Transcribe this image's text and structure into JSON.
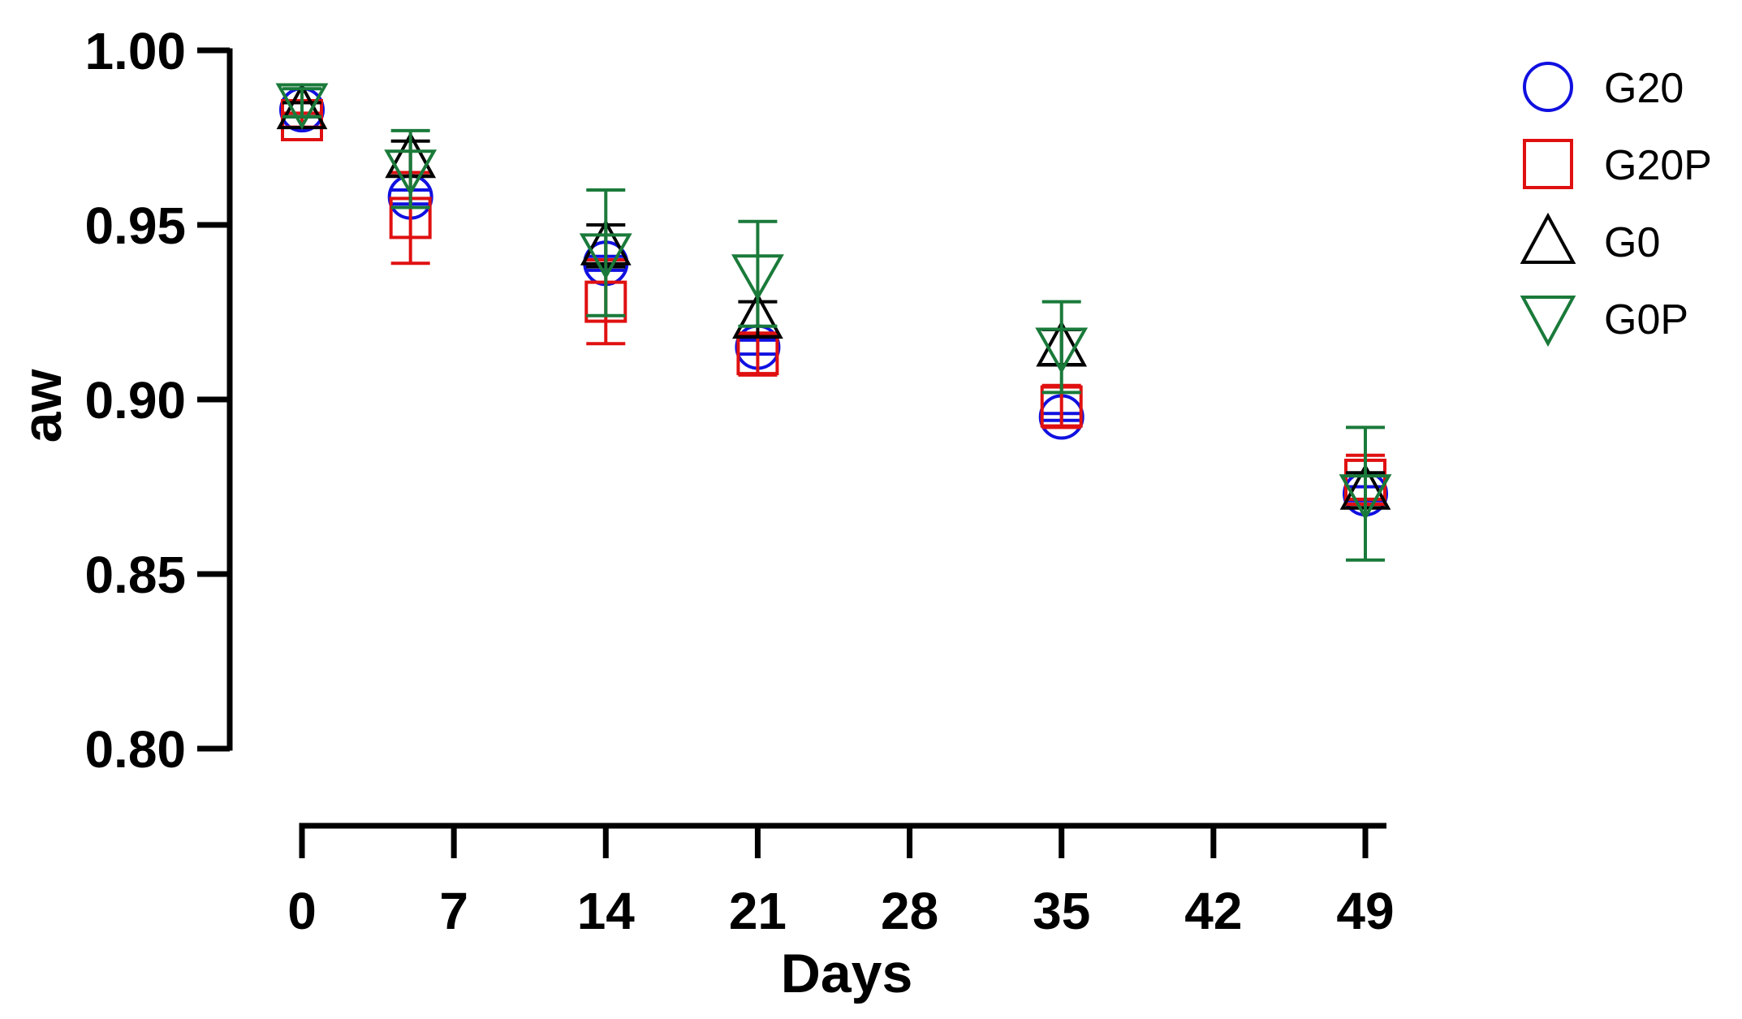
{
  "chart_data": {
    "type": "scatter",
    "xlabel": "Days",
    "ylabel": "aw",
    "xlim": [
      0,
      49
    ],
    "ylim": [
      0.8,
      1.0
    ],
    "x_ticks": [
      0,
      7,
      14,
      21,
      28,
      35,
      42,
      49
    ],
    "y_ticks": [
      0.8,
      0.85,
      0.9,
      0.95,
      1.0
    ],
    "y_tick_labels": [
      "0.80",
      "0.85",
      "0.90",
      "0.95",
      "1.00"
    ],
    "grid": false,
    "legend_position": "top-right",
    "error_bars": true,
    "series": [
      {
        "name": "G20",
        "marker": "circle",
        "color": "#1010e0",
        "points": [
          {
            "x": 0,
            "y": 0.983,
            "err": 0.002
          },
          {
            "x": 5,
            "y": 0.958,
            "err": 0.002
          },
          {
            "x": 14,
            "y": 0.939,
            "err": 0.002
          },
          {
            "x": 21,
            "y": 0.915,
            "err": 0.002
          },
          {
            "x": 35,
            "y": 0.895,
            "err": 0.001
          },
          {
            "x": 49,
            "y": 0.873,
            "err": 0.002
          }
        ]
      },
      {
        "name": "G20P",
        "marker": "square",
        "color": "#e01010",
        "points": [
          {
            "x": 0,
            "y": 0.98,
            "err": 0.002
          },
          {
            "x": 5,
            "y": 0.952,
            "err": 0.013
          },
          {
            "x": 14,
            "y": 0.928,
            "err": 0.012
          },
          {
            "x": 21,
            "y": 0.913,
            "err": 0.006
          },
          {
            "x": 35,
            "y": 0.898,
            "err": 0.006
          },
          {
            "x": 49,
            "y": 0.877,
            "err": 0.007
          }
        ]
      },
      {
        "name": "G0",
        "marker": "triangle-up",
        "color": "#000000",
        "points": [
          {
            "x": 0,
            "y": 0.983,
            "err": 0.002
          },
          {
            "x": 5,
            "y": 0.969,
            "err": 0.005
          },
          {
            "x": 14,
            "y": 0.944,
            "err": 0.006
          },
          {
            "x": 21,
            "y": 0.923,
            "err": 0.005
          },
          {
            "x": 35,
            "y": 0.915,
            "err": 0.005
          },
          {
            "x": 49,
            "y": 0.874,
            "err": 0.005
          }
        ]
      },
      {
        "name": "G0P",
        "marker": "triangle-down",
        "color": "#1a7a3a",
        "points": [
          {
            "x": 0,
            "y": 0.985,
            "err": 0.004
          },
          {
            "x": 5,
            "y": 0.966,
            "err": 0.011
          },
          {
            "x": 14,
            "y": 0.942,
            "err": 0.018
          },
          {
            "x": 21,
            "y": 0.936,
            "err": 0.015
          },
          {
            "x": 35,
            "y": 0.915,
            "err": 0.013
          },
          {
            "x": 49,
            "y": 0.873,
            "err": 0.019
          }
        ]
      }
    ]
  }
}
